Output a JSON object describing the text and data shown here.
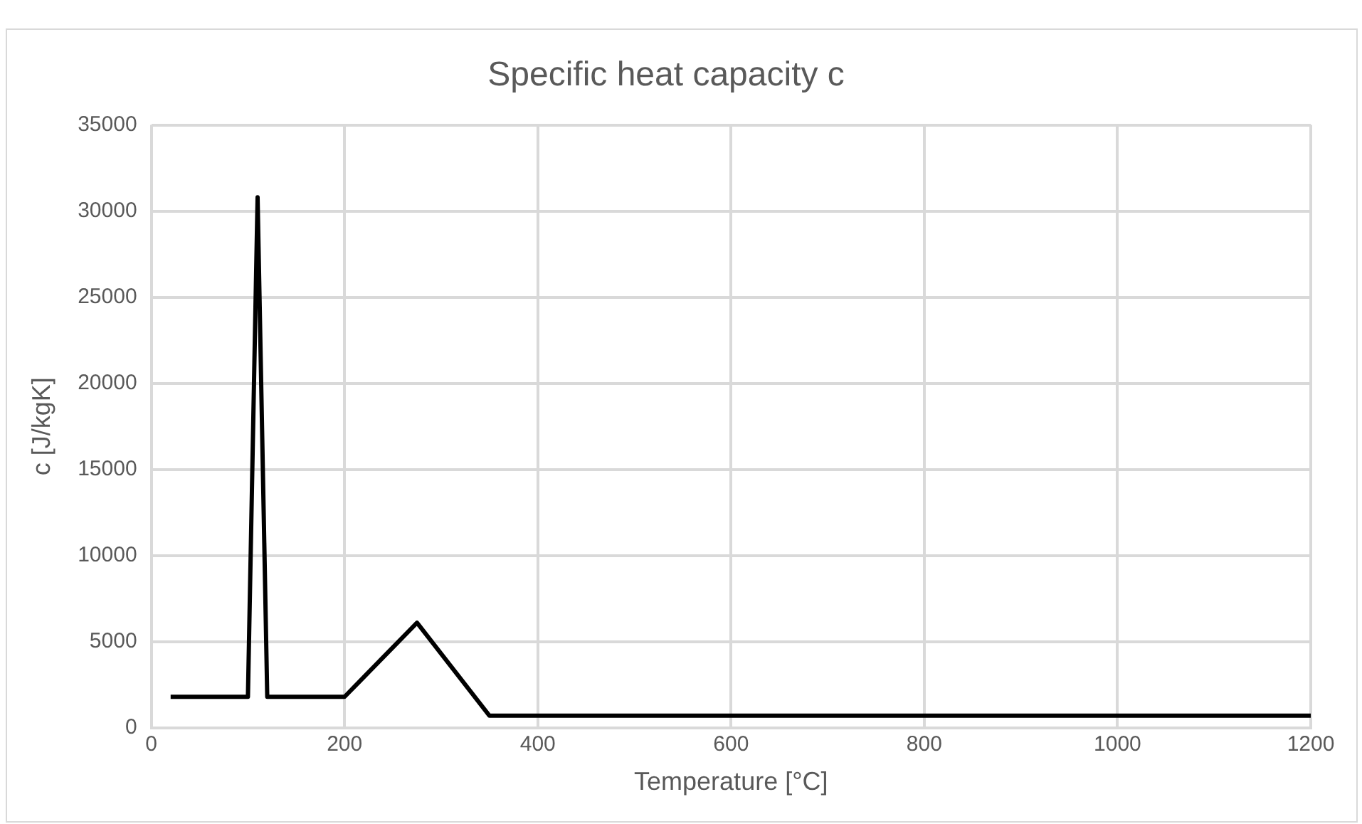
{
  "chart_data": {
    "type": "line",
    "title": "Specific heat capacity c",
    "xlabel": "Temperature [°C]",
    "ylabel": "c [J/kgK]",
    "x": [
      20,
      100,
      110,
      120,
      200,
      275,
      350,
      1200
    ],
    "series": [
      {
        "color": "#000000",
        "values": [
          1800,
          1800,
          30800,
          1800,
          1800,
          6100,
          700,
          700
        ]
      }
    ],
    "xlim": [
      0,
      1200
    ],
    "xticks": [
      0,
      200,
      400,
      600,
      800,
      1000,
      1200
    ],
    "ylim": [
      0,
      35000
    ],
    "yticks": [
      0,
      5000,
      10000,
      15000,
      20000,
      25000,
      30000,
      35000
    ],
    "grid": true,
    "legend": false,
    "marker": "none",
    "line_style": "solid"
  }
}
